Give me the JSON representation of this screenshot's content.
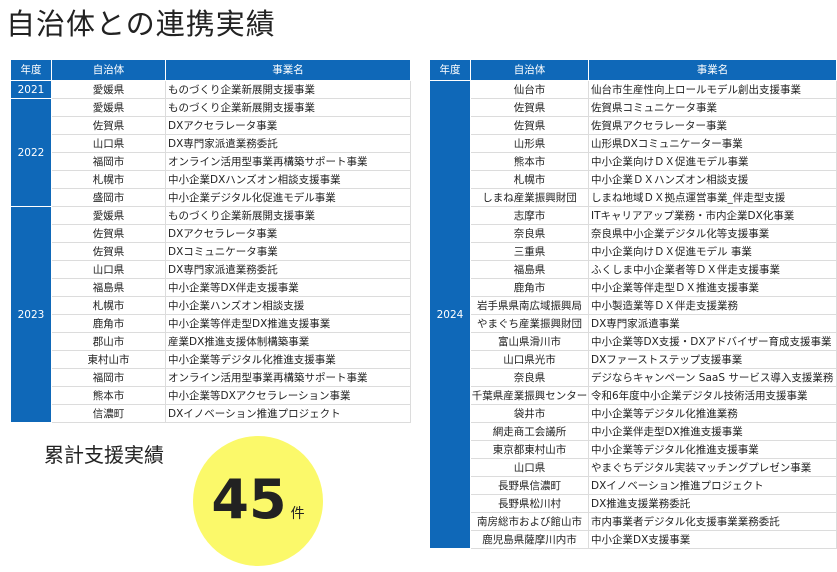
{
  "title": "自治体との連携実績",
  "headers": {
    "year": "年度",
    "municipality": "自治体",
    "project": "事業名"
  },
  "left_table": [
    {
      "year": "2021",
      "rows": [
        [
          "愛媛県",
          "ものづくり企業新展開支援事業"
        ]
      ]
    },
    {
      "year": "2022",
      "rows": [
        [
          "愛媛県",
          "ものづくり企業新展開支援事業"
        ],
        [
          "佐賀県",
          "DXアクセラレータ事業"
        ],
        [
          "山口県",
          "DX専門家派遣業務委託"
        ],
        [
          "福岡市",
          "オンライン活用型事業再構築サポート事業"
        ],
        [
          "札幌市",
          "中小企業DXハンズオン相談支援事業"
        ],
        [
          "盛岡市",
          "中小企業デジタル化促進モデル事業"
        ]
      ]
    },
    {
      "year": "2023",
      "rows": [
        [
          "愛媛県",
          "ものづくり企業新展開支援事業"
        ],
        [
          "佐賀県",
          "DXアクセラレータ事業"
        ],
        [
          "佐賀県",
          "DXコミュニケータ事業"
        ],
        [
          "山口県",
          "DX専門家派遣業務委託"
        ],
        [
          "福島県",
          "中小企業等DX伴走支援事業"
        ],
        [
          "札幌市",
          "中小企業ハンズオン相談支援"
        ],
        [
          "鹿角市",
          "中小企業等伴走型DX推進支援事業"
        ],
        [
          "郡山市",
          "産業DX推進支援体制構築事業"
        ],
        [
          "東村山市",
          "中小企業等デジタル化推進支援事業"
        ],
        [
          "福岡市",
          "オンライン活用型事業再構築サポート事業"
        ],
        [
          "熊本市",
          "中小企業等DXアクセラレーション事業"
        ],
        [
          "信濃町",
          "DXイノベーション推進プロジェクト"
        ]
      ]
    }
  ],
  "right_table": [
    {
      "year": "2024",
      "rows": [
        [
          "仙台市",
          "仙台市生産性向上ロールモデル創出支援事業"
        ],
        [
          "佐賀県",
          "佐賀県コミュニケータ事業"
        ],
        [
          "佐賀県",
          "佐賀県アクセラレーター事業"
        ],
        [
          "山形県",
          "山形県DXコミュニケーター事業"
        ],
        [
          "熊本市",
          "中小企業向けＤＸ促進モデル事業"
        ],
        [
          "札幌市",
          "中小企業ＤＸハンズオン相談支援"
        ],
        [
          "しまね産業振興財団",
          "しまね地域ＤＸ拠点運営事業_伴走型支援"
        ],
        [
          "志摩市",
          "ITキャリアアップ業務・市内企業DX化事業"
        ],
        [
          "奈良県",
          "奈良県中小企業デジタル化等支援事業"
        ],
        [
          "三重県",
          "中小企業向けＤＸ促進モデル 事業"
        ],
        [
          "福島県",
          "ふくしま中小企業者等ＤＸ伴走支援事業"
        ],
        [
          "鹿角市",
          "中小企業等伴走型ＤＸ推進支援事業"
        ],
        [
          "岩手県県南広域振興局",
          "中小製造業等ＤＸ伴走支援業務"
        ],
        [
          "やまぐち産業振興財団",
          "DX専門家派遣事業"
        ],
        [
          "富山県滑川市",
          "中小企業等DX支援・DXアドバイザー育成支援事業"
        ],
        [
          "山口県光市",
          "DXファーストステップ支援事業"
        ],
        [
          "奈良県",
          "デジならキャンペーン SaaS サービス導入支援業務"
        ],
        [
          "千葉県産業振興センター",
          "令和6年度中小企業デジタル技術活用支援事業"
        ],
        [
          "袋井市",
          "中小企業等デジタル化推進業務"
        ],
        [
          "網走商工会議所",
          "中小企業伴走型DX推進支援事業"
        ],
        [
          "東京都東村山市",
          "中小企業等デジタル化推進支援事業"
        ],
        [
          "山口県",
          "やまぐちデジタル実装マッチングプレゼン事業"
        ],
        [
          "長野県信濃町",
          "DXイノベーション推進プロジェクト"
        ],
        [
          "長野県松川村",
          "DX推進支援業務委託"
        ],
        [
          "南房総市および館山市",
          "市内事業者デジタル化支援事業業務委託"
        ],
        [
          "鹿児島県薩摩川内市",
          "中小企業DX支援事業"
        ]
      ]
    }
  ],
  "summary": {
    "label": "累計支援実績",
    "count": "45",
    "unit": "件"
  },
  "colors": {
    "header_blue": "#0f68b8",
    "highlight_yellow": "#fbf96a"
  }
}
